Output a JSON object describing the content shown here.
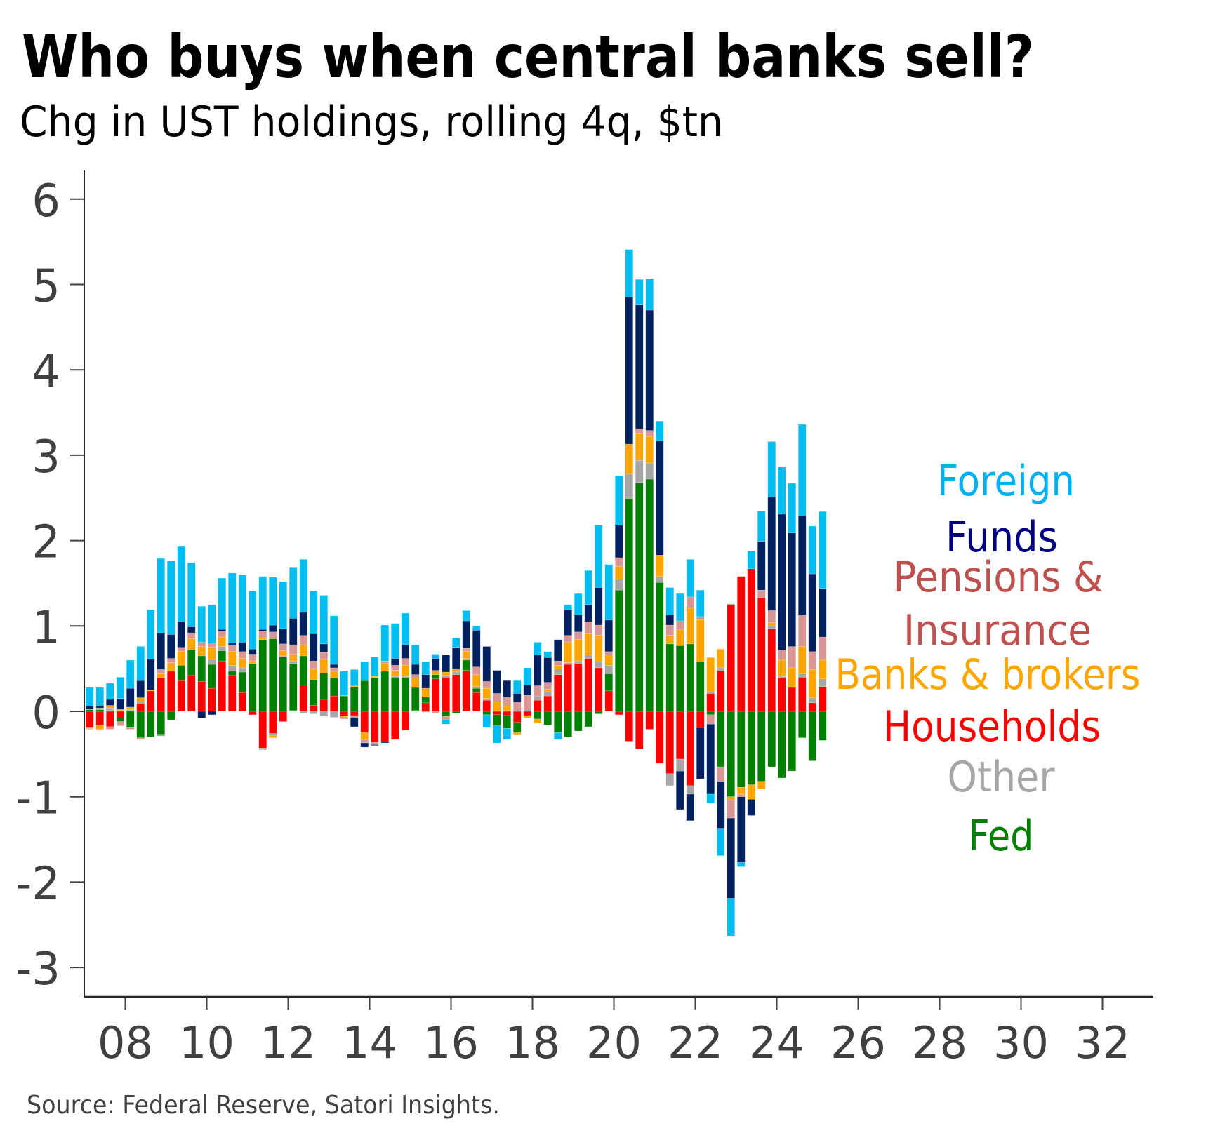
{
  "header": {
    "title": "Who buys when central banks sell?",
    "subtitle": "Chg in UST holdings, rolling 4q, $tn"
  },
  "footer": {
    "source": "Source: Federal Reserve, Satori Insights."
  },
  "chart_data": {
    "type": "bar",
    "stacked": true,
    "title": "Who buys when central banks sell?",
    "subtitle": "Chg in UST holdings, rolling 4q, $tn",
    "xlabel": "",
    "ylabel": "",
    "x_start": 2007.125,
    "x_step": 0.25,
    "xlim": [
      2007.0,
      2033.3
    ],
    "ylim": [
      -3.35,
      6.33
    ],
    "x_ticks": [
      2008,
      2010,
      2012,
      2014,
      2016,
      2018,
      2020,
      2022,
      2024,
      2026,
      2028,
      2030,
      2032
    ],
    "x_tick_labels": [
      "08",
      "10",
      "12",
      "14",
      "16",
      "18",
      "20",
      "22",
      "24",
      "26",
      "28",
      "30",
      "32"
    ],
    "y_ticks": [
      6,
      5,
      4,
      3,
      2,
      1,
      0,
      -1,
      -2,
      -3
    ],
    "y_tick_labels": [
      "6",
      "5",
      "4",
      "3",
      "2",
      "1",
      "0",
      "-1",
      "-2",
      "-3"
    ],
    "grid": false,
    "legend_placement": "right (inline text labels)",
    "legend": [
      {
        "label": "Foreign",
        "color": "#00B0F0"
      },
      {
        "label": "Funds",
        "color": "#000080"
      },
      {
        "label": "Pensions &",
        "color": "#C0504D"
      },
      {
        "label": "Insurance",
        "color": "#C0504D"
      },
      {
        "label": "Banks & brokers",
        "color": "#FFA500"
      },
      {
        "label": "Households",
        "color": "#FF0000"
      },
      {
        "label": "Other",
        "color": "#A6A6A6"
      },
      {
        "label": "Fed",
        "color": "#008000"
      }
    ],
    "series": [
      {
        "name": "Households",
        "key": "households",
        "color": "#FF0000",
        "values": [
          -0.19,
          -0.16,
          -0.18,
          -0.08,
          0.01,
          0.09,
          0.24,
          0.39,
          0.47,
          0.36,
          0.42,
          0.35,
          0.27,
          0.59,
          0.42,
          0.22,
          -0.04,
          -0.43,
          -0.26,
          -0.12,
          0.01,
          0.31,
          0.07,
          0.14,
          0.18,
          -0.06,
          -0.05,
          -0.25,
          -0.36,
          -0.36,
          -0.33,
          -0.22,
          0.01,
          0.1,
          0.38,
          0.4,
          0.43,
          0.48,
          0.22,
          0.13,
          -0.04,
          -0.05,
          -0.13,
          -0.05,
          0.13,
          0.18,
          0.43,
          0.55,
          0.56,
          0.62,
          0.51,
          0.24,
          -0.04,
          -0.35,
          -0.44,
          -0.21,
          -0.61,
          -0.73,
          -0.56,
          -0.87,
          -0.19,
          0.21,
          0.48,
          1.25,
          1.58,
          1.67,
          1.33,
          0.97,
          0.39,
          0.28,
          0.4,
          0.1,
          0.29
        ]
      },
      {
        "name": "Fed",
        "key": "fed",
        "color": "#008000",
        "values": [
          0.02,
          0.02,
          0.01,
          -0.04,
          -0.19,
          -0.31,
          -0.3,
          -0.27,
          -0.1,
          0.18,
          0.3,
          0.3,
          0.28,
          0.12,
          0.05,
          0.24,
          0.56,
          0.84,
          0.85,
          0.64,
          0.55,
          0.34,
          0.3,
          0.31,
          0.21,
          0.18,
          0.29,
          0.36,
          0.39,
          0.47,
          0.4,
          0.39,
          0.27,
          0.07,
          0.05,
          -0.06,
          -0.02,
          0.12,
          0.05,
          -0.04,
          -0.12,
          -0.15,
          -0.12,
          0.0,
          -0.09,
          -0.16,
          -0.25,
          -0.3,
          -0.23,
          -0.18,
          -0.03,
          0.2,
          1.42,
          2.49,
          2.68,
          2.72,
          1.51,
          0.79,
          0.77,
          0.79,
          0.58,
          -0.04,
          -0.65,
          -1.0,
          -0.89,
          -0.86,
          -0.82,
          -0.65,
          -0.78,
          -0.7,
          -0.31,
          -0.58,
          -0.34
        ]
      },
      {
        "name": "Other",
        "key": "other",
        "color": "#A6A6A6",
        "values": [
          0.01,
          0.02,
          0.03,
          0.01,
          0.01,
          0.02,
          0.0,
          -0.02,
          0.0,
          0.0,
          0.0,
          0.01,
          0.06,
          0.05,
          0.07,
          0.05,
          0.0,
          -0.02,
          -0.02,
          0.01,
          0.03,
          -0.02,
          -0.03,
          -0.06,
          -0.07,
          0.01,
          0.0,
          0.0,
          0.01,
          0.0,
          0.01,
          0.02,
          0.0,
          0.0,
          0.0,
          0.02,
          0.03,
          0.02,
          0.02,
          0.02,
          0.0,
          0.01,
          0.0,
          0.03,
          0.05,
          0.05,
          0.07,
          0.02,
          0.03,
          0.04,
          0.07,
          0.1,
          0.13,
          0.29,
          0.26,
          0.19,
          0.07,
          -0.14,
          -0.14,
          -0.1,
          0.0,
          0.02,
          0.03,
          0.01,
          0.0,
          0.0,
          0.0,
          0.03,
          0.02,
          0.0,
          0.04,
          0.06,
          0.09
        ]
      },
      {
        "name": "Banks & brokers",
        "key": "banks",
        "color": "#FFA500",
        "values": [
          -0.01,
          -0.05,
          0.03,
          0.02,
          0.03,
          0.05,
          0.01,
          0.05,
          0.1,
          0.16,
          0.13,
          0.1,
          0.14,
          0.11,
          0.16,
          0.11,
          0.03,
          0.02,
          -0.03,
          0.06,
          0.08,
          0.13,
          0.13,
          0.16,
          0.08,
          -0.02,
          0.02,
          -0.08,
          0.01,
          0.09,
          0.07,
          0.13,
          0.11,
          0.1,
          0.05,
          0.04,
          0.04,
          0.08,
          0.14,
          0.12,
          0.11,
          0.05,
          -0.02,
          -0.03,
          -0.05,
          0.03,
          0.04,
          0.24,
          0.25,
          0.25,
          0.31,
          0.12,
          0.15,
          0.35,
          0.32,
          0.31,
          0.25,
          0.1,
          0.19,
          0.42,
          0.49,
          0.4,
          0.22,
          -0.04,
          -0.08,
          -0.17,
          -0.09,
          0.04,
          0.19,
          0.23,
          0.32,
          0.33,
          0.22
        ]
      },
      {
        "name": "Pensions & Insurance",
        "key": "pensions",
        "color": "#DA9694",
        "values": [
          -0.01,
          -0.01,
          -0.03,
          -0.05,
          -0.02,
          -0.02,
          0.0,
          0.05,
          0.05,
          0.05,
          0.07,
          0.05,
          0.05,
          0.07,
          0.08,
          0.08,
          0.08,
          0.08,
          0.08,
          0.08,
          0.11,
          0.11,
          0.09,
          0.08,
          0.04,
          -0.01,
          -0.03,
          -0.04,
          -0.03,
          0.03,
          0.06,
          0.08,
          0.04,
          -0.01,
          -0.02,
          -0.04,
          0.0,
          0.04,
          0.09,
          0.08,
          0.1,
          0.11,
          0.11,
          0.16,
          0.12,
          0.08,
          0.05,
          0.08,
          0.09,
          0.14,
          0.12,
          0.04,
          0.1,
          0.0,
          0.05,
          0.07,
          0.0,
          0.12,
          0.1,
          0.13,
          0.04,
          -0.11,
          -0.17,
          -0.21,
          -0.03,
          0.0,
          0.09,
          0.14,
          0.12,
          0.25,
          0.37,
          0.21,
          0.27
        ]
      },
      {
        "name": "Funds",
        "key": "funds",
        "color": "#002060",
        "values": [
          0.03,
          0.03,
          0.07,
          0.12,
          0.22,
          0.2,
          0.36,
          0.43,
          0.28,
          0.3,
          0.07,
          -0.08,
          -0.04,
          0.02,
          0.02,
          0.11,
          0.06,
          0.02,
          0.08,
          0.18,
          0.31,
          0.27,
          0.32,
          0.1,
          0.04,
          0.0,
          -0.1,
          -0.05,
          -0.01,
          -0.01,
          0.08,
          0.16,
          0.12,
          0.16,
          0.14,
          0.2,
          0.25,
          0.32,
          0.43,
          0.41,
          0.27,
          0.19,
          0.1,
          0.12,
          0.36,
          0.29,
          0.25,
          0.3,
          0.2,
          0.2,
          0.44,
          0.37,
          0.38,
          1.72,
          1.45,
          1.41,
          1.34,
          0.12,
          -0.45,
          -0.31,
          -0.6,
          -0.82,
          -0.55,
          -0.94,
          -0.77,
          -0.19,
          0.57,
          1.33,
          1.59,
          1.33,
          1.16,
          0.91,
          0.57
        ]
      },
      {
        "name": "Foreign",
        "key": "foreign",
        "color": "#00BDF2",
        "values": [
          0.22,
          0.21,
          0.19,
          0.25,
          0.33,
          0.4,
          0.58,
          0.87,
          0.86,
          0.88,
          0.75,
          0.42,
          0.45,
          0.6,
          0.82,
          0.79,
          0.68,
          0.62,
          0.56,
          0.55,
          0.6,
          0.62,
          0.5,
          0.57,
          0.57,
          0.28,
          0.18,
          0.22,
          0.23,
          0.42,
          0.41,
          0.37,
          0.23,
          0.15,
          0.05,
          -0.05,
          0.11,
          0.12,
          0.05,
          -0.15,
          -0.21,
          -0.13,
          0.15,
          0.2,
          0.15,
          0.07,
          -0.08,
          0.06,
          0.25,
          0.4,
          0.73,
          0.65,
          0.58,
          0.56,
          0.3,
          0.37,
          0.23,
          0.32,
          0.32,
          0.44,
          0.31,
          -0.1,
          -0.32,
          -0.44,
          -0.05,
          0.21,
          0.36,
          0.65,
          0.55,
          0.58,
          1.07,
          0.56,
          0.9
        ]
      }
    ]
  }
}
